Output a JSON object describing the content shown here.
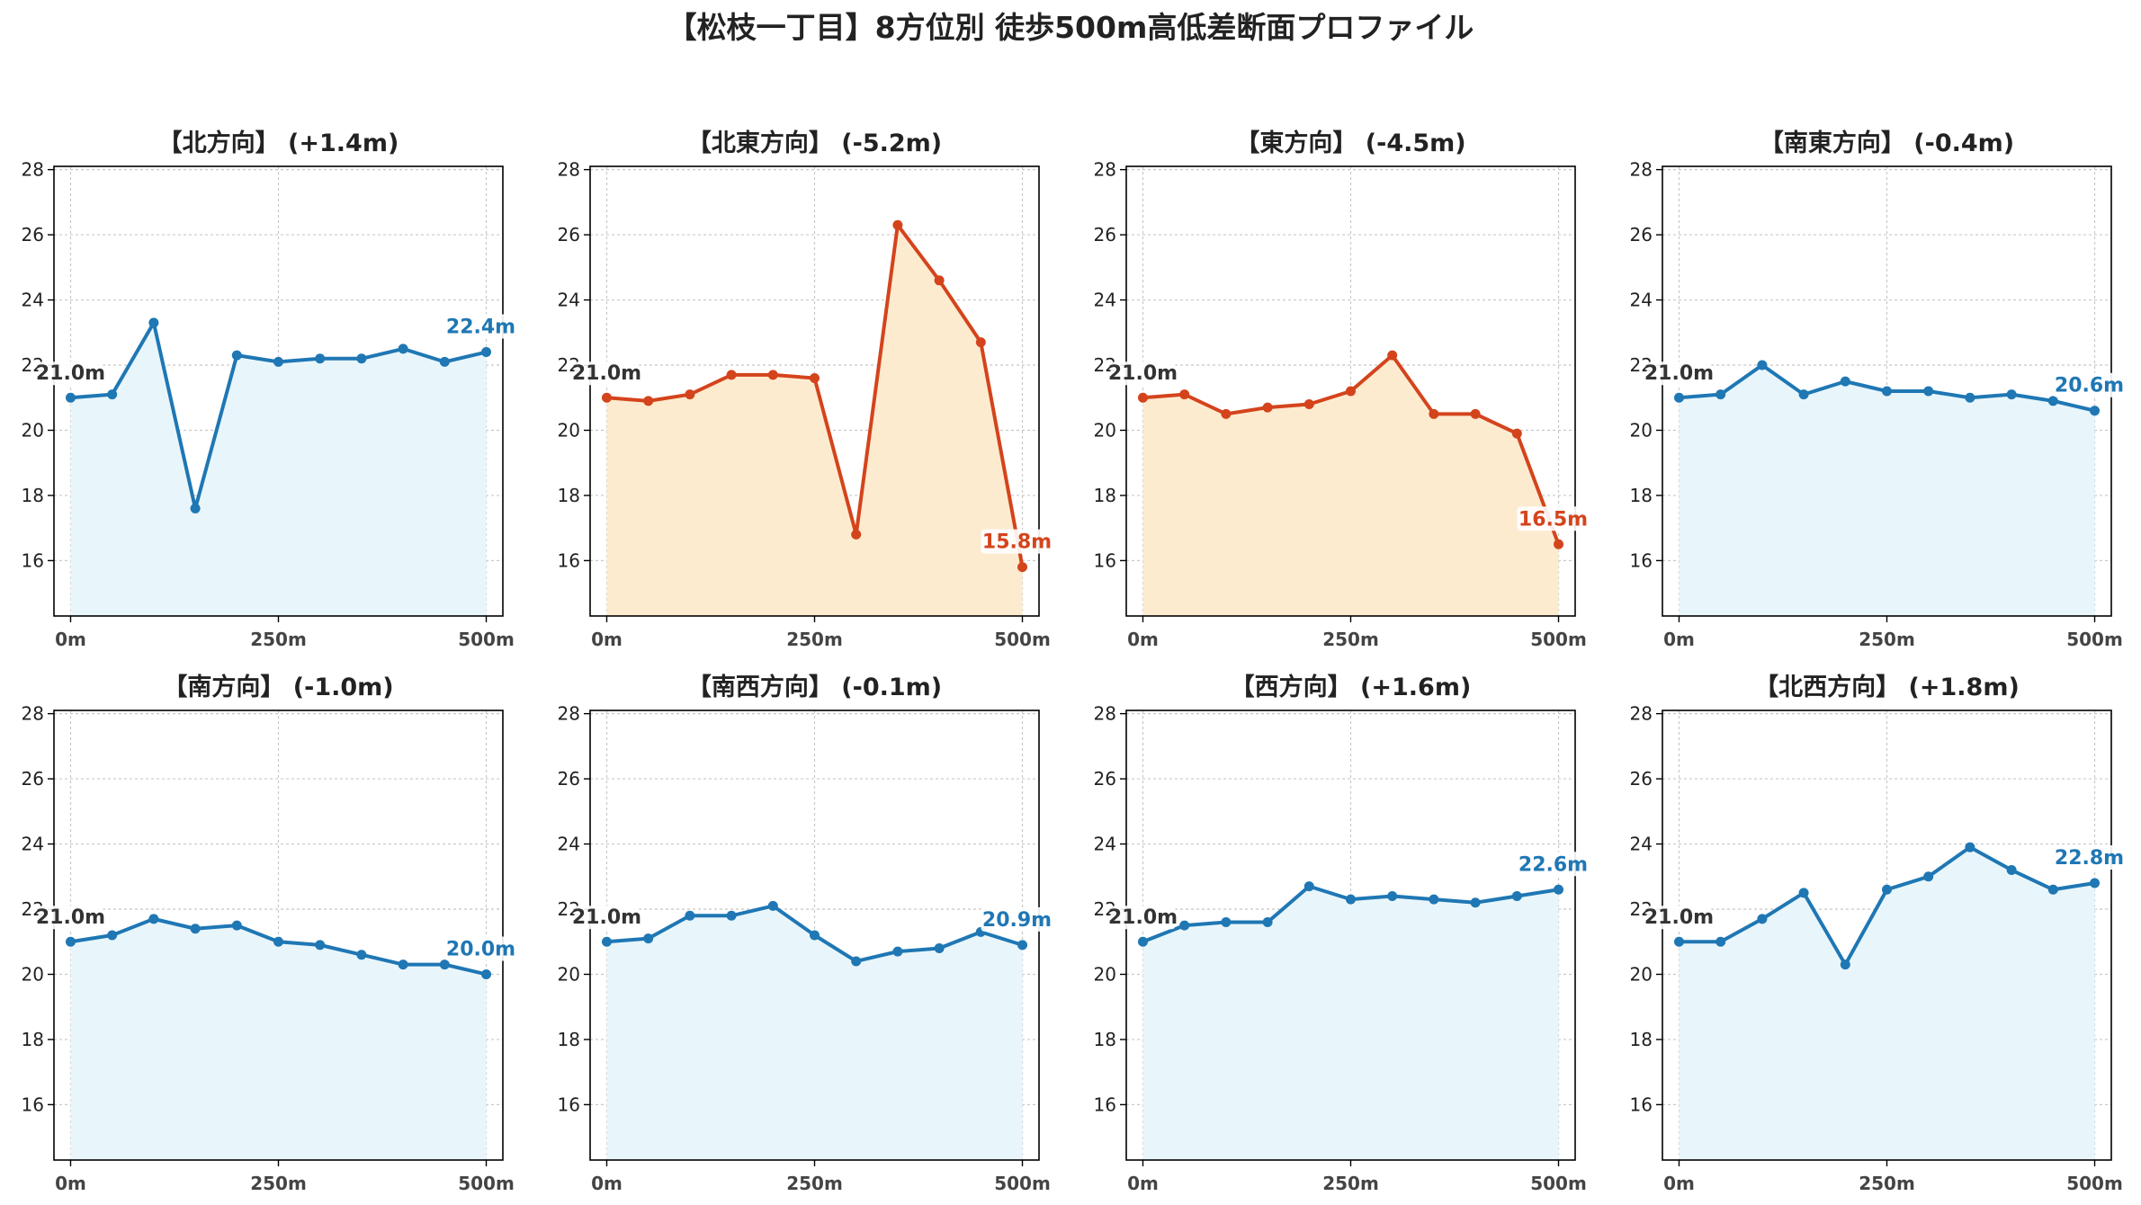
{
  "title": "【松枝一丁目】8方位別 徒歩500m高低差断面プロファイル",
  "colors": {
    "up_line": "#1f77b4",
    "up_fill": "#e8f6fb",
    "down_line": "#d4441c",
    "down_fill": "#fdebd0",
    "grid": "#c8c8c8"
  },
  "chart_data": [
    {
      "type": "area",
      "title": "【北方向】 (+1.4m)",
      "trend": "up",
      "x": [
        0,
        50,
        100,
        150,
        200,
        250,
        300,
        350,
        400,
        450,
        500
      ],
      "y": [
        21.0,
        21.1,
        23.3,
        17.6,
        22.3,
        22.1,
        22.2,
        22.2,
        22.5,
        22.1,
        22.4
      ],
      "start_label": "21.0m",
      "end_label": "22.4m"
    },
    {
      "type": "area",
      "title": "【北東方向】 (-5.2m)",
      "trend": "down",
      "x": [
        0,
        50,
        100,
        150,
        200,
        250,
        300,
        350,
        400,
        450,
        500
      ],
      "y": [
        21.0,
        20.9,
        21.1,
        21.7,
        21.7,
        21.6,
        16.8,
        26.3,
        24.6,
        22.7,
        15.8
      ],
      "start_label": "21.0m",
      "end_label": "15.8m"
    },
    {
      "type": "area",
      "title": "【東方向】 (-4.5m)",
      "trend": "down",
      "x": [
        0,
        50,
        100,
        150,
        200,
        250,
        300,
        350,
        400,
        450,
        500
      ],
      "y": [
        21.0,
        21.1,
        20.5,
        20.7,
        20.8,
        21.2,
        22.3,
        20.5,
        20.5,
        19.9,
        16.5
      ],
      "start_label": "21.0m",
      "end_label": "16.5m"
    },
    {
      "type": "area",
      "title": "【南東方向】 (-0.4m)",
      "trend": "up",
      "x": [
        0,
        50,
        100,
        150,
        200,
        250,
        300,
        350,
        400,
        450,
        500
      ],
      "y": [
        21.0,
        21.1,
        22.0,
        21.1,
        21.5,
        21.2,
        21.2,
        21.0,
        21.1,
        20.9,
        20.6
      ],
      "start_label": "21.0m",
      "end_label": "20.6m"
    },
    {
      "type": "area",
      "title": "【南方向】 (-1.0m)",
      "trend": "up",
      "x": [
        0,
        50,
        100,
        150,
        200,
        250,
        300,
        350,
        400,
        450,
        500
      ],
      "y": [
        21.0,
        21.2,
        21.7,
        21.4,
        21.5,
        21.0,
        20.9,
        20.6,
        20.3,
        20.3,
        20.0
      ],
      "start_label": "21.0m",
      "end_label": "20.0m"
    },
    {
      "type": "area",
      "title": "【南西方向】 (-0.1m)",
      "trend": "up",
      "x": [
        0,
        50,
        100,
        150,
        200,
        250,
        300,
        350,
        400,
        450,
        500
      ],
      "y": [
        21.0,
        21.1,
        21.8,
        21.8,
        22.1,
        21.2,
        20.4,
        20.7,
        20.8,
        21.3,
        20.9
      ],
      "start_label": "21.0m",
      "end_label": "20.9m"
    },
    {
      "type": "area",
      "title": "【西方向】 (+1.6m)",
      "trend": "up",
      "x": [
        0,
        50,
        100,
        150,
        200,
        250,
        300,
        350,
        400,
        450,
        500
      ],
      "y": [
        21.0,
        21.5,
        21.6,
        21.6,
        22.7,
        22.3,
        22.4,
        22.3,
        22.2,
        22.4,
        22.6
      ],
      "start_label": "21.0m",
      "end_label": "22.6m"
    },
    {
      "type": "area",
      "title": "【北西方向】 (+1.8m)",
      "trend": "up",
      "x": [
        0,
        50,
        100,
        150,
        200,
        250,
        300,
        350,
        400,
        450,
        500
      ],
      "y": [
        21.0,
        21.0,
        21.7,
        22.5,
        20.3,
        22.6,
        23.0,
        23.9,
        23.2,
        22.6,
        22.8
      ],
      "start_label": "21.0m",
      "end_label": "22.8m"
    }
  ],
  "axes": {
    "ylim": [
      14.3,
      28.1
    ],
    "xlim": [
      -20,
      520
    ],
    "yticks": [
      16,
      18,
      20,
      22,
      24,
      26,
      28
    ],
    "ytick_labels": [
      "16",
      "18",
      "20",
      "22",
      "24",
      "26",
      "28"
    ],
    "xticks": [
      0,
      250,
      500
    ],
    "xtick_labels": [
      "0m",
      "250m",
      "500m"
    ],
    "grid": true
  }
}
